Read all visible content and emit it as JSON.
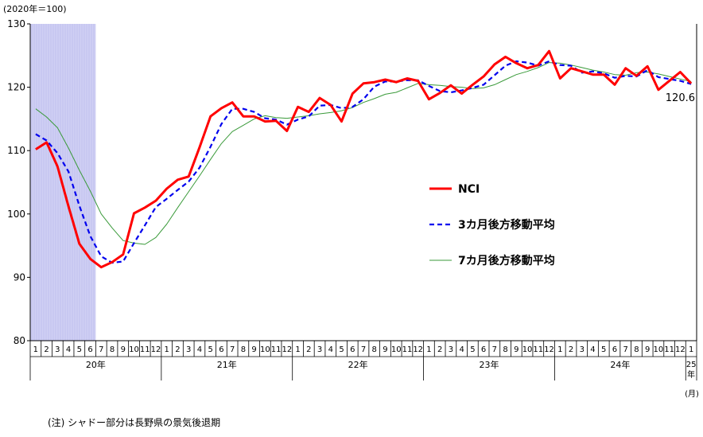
{
  "chart_data": {
    "type": "line",
    "y_unit_label": "(2020年＝100)",
    "ylim": [
      80,
      130
    ],
    "yticks": [
      "80",
      "90",
      "100",
      "110",
      "120",
      "130"
    ],
    "month_labels": [
      "1",
      "2",
      "3",
      "4",
      "5",
      "6",
      "7",
      "8",
      "9",
      "10",
      "11",
      "12"
    ],
    "year_labels": [
      "20年",
      "21年",
      "22年",
      "23年",
      "24年",
      "25\n年"
    ],
    "month_unit": "(月)",
    "recession_shading": {
      "from_index": 0,
      "to_index": 5
    },
    "x_start": "2020-01",
    "series": [
      {
        "name": "NCI",
        "color": "#ff0000",
        "style": "solid-thick",
        "values": [
          110.2,
          111.3,
          107.5,
          101.2,
          95.3,
          92.9,
          91.6,
          92.4,
          93.6,
          100.1,
          101.0,
          102.1,
          104.0,
          105.4,
          105.9,
          110.5,
          115.4,
          116.7,
          117.6,
          115.4,
          115.4,
          114.6,
          114.7,
          113.1,
          116.9,
          116.1,
          118.3,
          117.2,
          114.6,
          119.0,
          120.6,
          120.8,
          121.2,
          120.8,
          121.4,
          121.0,
          118.1,
          119.1,
          120.3,
          119.0,
          120.4,
          121.7,
          123.6,
          124.8,
          123.8,
          123.0,
          123.5,
          125.7,
          121.4,
          123.0,
          122.5,
          122.0,
          122.0,
          120.4,
          123.0,
          121.8,
          123.3,
          119.6,
          121.0,
          122.4,
          120.6
        ],
        "end_label": "120.6"
      },
      {
        "name": "3カ月後方移動平均",
        "color": "#0000ee",
        "style": "dashed",
        "values": [
          112.6,
          111.6,
          109.6,
          106.7,
          101.3,
          96.5,
          93.3,
          92.3,
          92.5,
          95.4,
          98.2,
          101.1,
          102.4,
          103.8,
          105.1,
          107.3,
          110.6,
          114.2,
          116.6,
          116.6,
          116.1,
          115.1,
          114.9,
          114.1,
          114.9,
          115.4,
          117.1,
          117.2,
          116.7,
          116.9,
          118.1,
          120.1,
          120.9,
          120.9,
          121.1,
          121.1,
          120.2,
          119.4,
          119.2,
          119.5,
          119.9,
          120.4,
          121.9,
          123.4,
          124.1,
          123.9,
          123.4,
          124.1,
          123.5,
          123.4,
          122.3,
          122.5,
          122.2,
          121.5,
          121.8,
          121.7,
          122.7,
          121.6,
          121.3,
          121.0,
          120.5
        ]
      },
      {
        "name": "7カ月後方移動平均",
        "color": "#3a9a3a",
        "style": "solid-thin",
        "values": [
          116.6,
          115.3,
          113.6,
          110.4,
          106.9,
          103.6,
          100.0,
          97.8,
          95.8,
          95.4,
          95.2,
          96.3,
          98.4,
          101.0,
          103.5,
          106.0,
          108.6,
          111.1,
          113.0,
          114.0,
          115.0,
          115.5,
          115.2,
          115.1,
          115.3,
          115.5,
          115.8,
          116.0,
          116.3,
          116.8,
          117.6,
          118.2,
          118.9,
          119.2,
          119.9,
          120.6,
          120.4,
          120.3,
          120.1,
          120.0,
          119.8,
          119.9,
          120.4,
          121.2,
          122.0,
          122.5,
          123.1,
          123.9,
          123.8,
          123.5,
          123.1,
          122.7,
          122.4,
          122.0,
          121.9,
          122.3,
          122.4,
          122.1,
          121.7,
          121.3,
          120.9
        ]
      }
    ],
    "legend_position": "center-right"
  },
  "note": "(注) シャドー部分は長野県の景気後退期"
}
